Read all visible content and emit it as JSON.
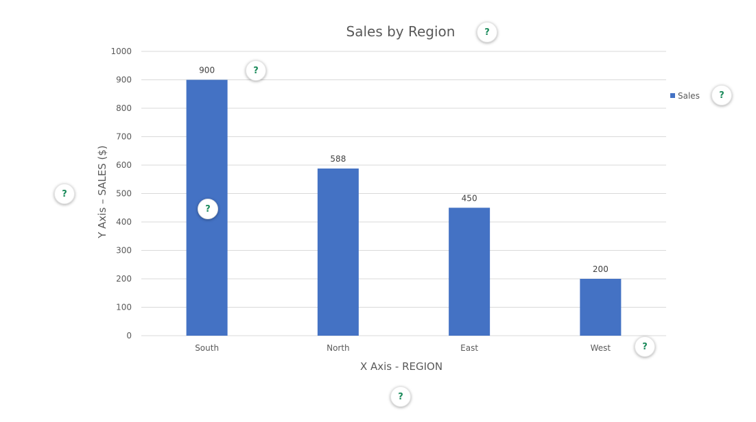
{
  "chart_data": {
    "type": "bar",
    "title": "Sales by Region",
    "xlabel": "X Axis - REGION",
    "ylabel": "Y Axis – SALES ($)",
    "categories": [
      "South",
      "North",
      "East",
      "West"
    ],
    "series": [
      {
        "name": "Sales",
        "values": [
          900,
          588,
          450,
          200
        ],
        "color": "#4472c4"
      }
    ],
    "ylim": [
      0,
      1000
    ],
    "yticks": [
      0,
      100,
      200,
      300,
      400,
      500,
      600,
      700,
      800,
      900,
      1000
    ],
    "data_labels": true,
    "grid": true,
    "legend": "right"
  },
  "help_buttons": {
    "symbol": "?",
    "icon": "question-mark-icon",
    "color": "#1a8a5a"
  }
}
